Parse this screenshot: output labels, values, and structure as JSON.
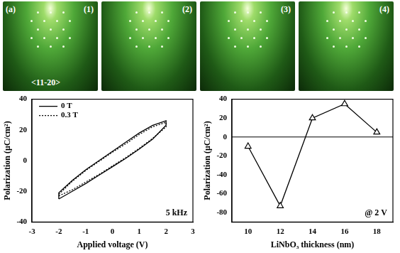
{
  "figure_label": "(a)",
  "images": [
    {
      "label": "(1)",
      "annotation": "<11-20>"
    },
    {
      "label": "(2)"
    },
    {
      "label": "(3)"
    },
    {
      "label": "(4)"
    }
  ],
  "chart_data": [
    {
      "type": "line",
      "x_label": "Applied voltage (V)",
      "y_label": "Polarization (μC/cm²)",
      "xlim": [
        -3,
        3
      ],
      "xticks": [
        -3,
        -2,
        -1,
        0,
        1,
        2,
        3
      ],
      "ylim": [
        -40,
        40
      ],
      "yticks": [
        -40,
        -20,
        0,
        20,
        40
      ],
      "legend": "top-left",
      "annotation": "5 kHz",
      "series": [
        {
          "name": "0 T",
          "color": "#000000",
          "line_style": "solid",
          "x": [
            -2,
            -1.5,
            -1,
            -0.5,
            0,
            0.5,
            1,
            1.5,
            2,
            2,
            1.5,
            1,
            0.5,
            0,
            -0.5,
            -1,
            -1.5,
            -2,
            -2
          ],
          "values": [
            -25,
            -20,
            -15,
            -9.5,
            -4,
            1.5,
            7.5,
            14,
            23,
            26,
            23,
            18,
            12,
            6,
            0,
            -6,
            -13,
            -21,
            -25
          ]
        },
        {
          "name": "0.3 T",
          "color": "#000000",
          "line_style": "dotted",
          "x": [
            -2,
            -1.5,
            -1,
            -0.5,
            0,
            0.5,
            1,
            1.5,
            2,
            2,
            1.5,
            1,
            0.5,
            0,
            -0.5,
            -1,
            -1.5,
            -2,
            -2
          ],
          "values": [
            -23,
            -19,
            -14,
            -9,
            -3.5,
            2,
            8,
            14.5,
            22,
            25,
            22,
            17,
            11,
            5.5,
            -0.5,
            -6.5,
            -13.5,
            -22,
            -23
          ]
        }
      ]
    },
    {
      "type": "line",
      "x_label": "LiNbO₃ thickness (nm)",
      "y_label": "Polarization (μC/cm²)",
      "xlim": [
        9,
        19
      ],
      "xticks": [
        10,
        12,
        14,
        16,
        18
      ],
      "ylim": [
        -90,
        40
      ],
      "yticks": [
        -80,
        -60,
        -40,
        -20,
        0,
        20,
        40
      ],
      "annotation": "@ 2 V",
      "reference_line": 0,
      "series": [
        {
          "color": "#000000",
          "line_style": "solid",
          "marker": "triangle",
          "x": [
            10,
            12,
            14,
            16,
            18
          ],
          "values": [
            -10,
            -73,
            20,
            35,
            5
          ]
        }
      ]
    }
  ]
}
